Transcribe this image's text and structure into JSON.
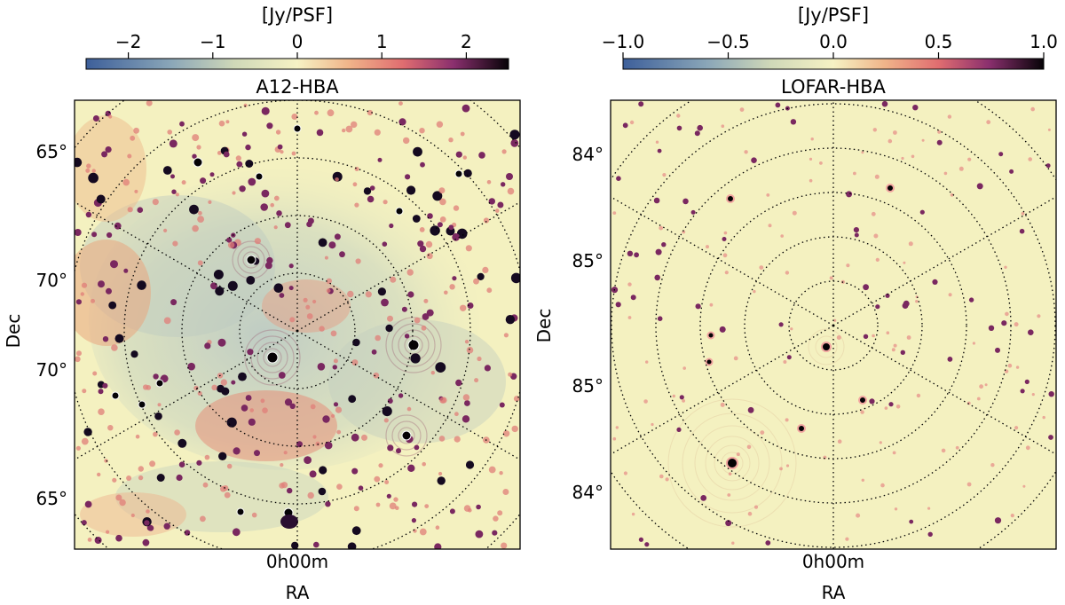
{
  "figure": {
    "colors": {
      "background": "#f4f1c0",
      "source": "#150a20",
      "source_mid": "#7a2860",
      "frame": "#000000"
    },
    "panels": [
      {
        "id": "a12",
        "title": "A12-HBA",
        "colorbar": {
          "label": "[Jy/PSF]",
          "ticks": [
            "−2",
            "−1",
            "0",
            "1",
            "2"
          ],
          "tick_values": [
            -2,
            -1,
            0,
            1,
            2
          ],
          "range": [
            -2.5,
            2.5
          ]
        },
        "y_axis": {
          "label": "Dec",
          "ticks": [
            "65°",
            "70°",
            "70°",
            "65°"
          ]
        },
        "x_axis": {
          "label": "RA",
          "ticks": [
            "0h00m"
          ]
        }
      },
      {
        "id": "lofar",
        "title": "LOFAR-HBA",
        "colorbar": {
          "label": "[Jy/PSF]",
          "ticks": [
            "−1.0",
            "−0.5",
            "0.0",
            "0.5",
            "1.0"
          ],
          "tick_values": [
            -1.0,
            -0.5,
            0.0,
            0.5,
            1.0
          ],
          "range": [
            -1.0,
            1.0
          ]
        },
        "y_axis": {
          "label": "Dec",
          "ticks": [
            "84°",
            "85°",
            "85°",
            "84°"
          ]
        },
        "x_axis": {
          "label": "RA",
          "ticks": [
            "0h00m"
          ]
        }
      }
    ]
  }
}
